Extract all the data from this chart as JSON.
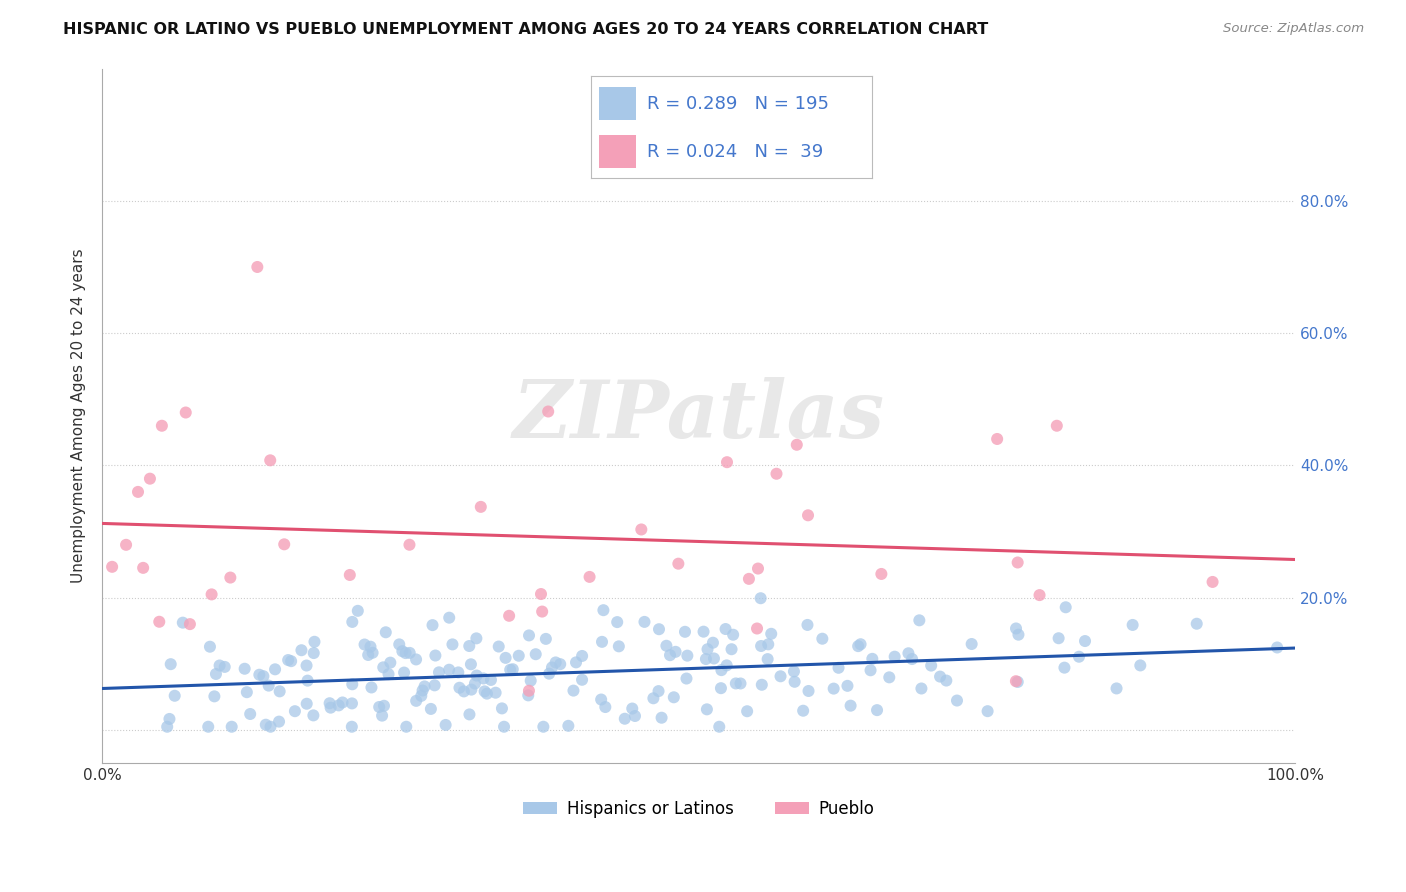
{
  "title": "HISPANIC OR LATINO VS PUEBLO UNEMPLOYMENT AMONG AGES 20 TO 24 YEARS CORRELATION CHART",
  "source": "Source: ZipAtlas.com",
  "ylabel": "Unemployment Among Ages 20 to 24 years",
  "xlim": [
    0,
    1.0
  ],
  "ylim": [
    -0.05,
    1.0
  ],
  "blue_R": 0.289,
  "blue_N": 195,
  "pink_R": 0.024,
  "pink_N": 39,
  "blue_color": "#a8c8e8",
  "pink_color": "#f4a0b8",
  "blue_line_color": "#2255aa",
  "pink_line_color": "#e05070",
  "legend_labels": [
    "Hispanics or Latinos",
    "Pueblo"
  ],
  "background_color": "#ffffff",
  "grid_color": "#cccccc",
  "ytick_color": "#4477cc",
  "xtick_color": "#333333"
}
